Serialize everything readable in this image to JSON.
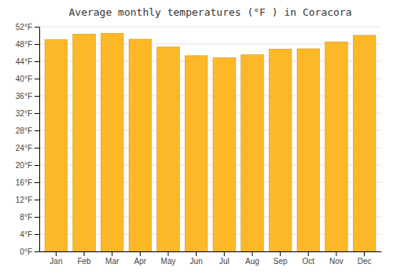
{
  "chart_data": {
    "type": "bar",
    "title": "Average monthly temperatures (°F ) in Coracora",
    "categories": [
      "Jan",
      "Feb",
      "Mar",
      "Apr",
      "May",
      "Jun",
      "Jul",
      "Aug",
      "Sep",
      "Oct",
      "Nov",
      "Dec"
    ],
    "values": [
      49.0,
      50.3,
      50.5,
      49.1,
      47.3,
      45.3,
      44.8,
      45.5,
      46.8,
      46.9,
      48.5,
      50.0
    ],
    "color": "#FDB827",
    "ylim": [
      0,
      52
    ],
    "yticks": [
      {
        "value": 0,
        "label": "0°F"
      },
      {
        "value": 4,
        "label": "4°F"
      },
      {
        "value": 8,
        "label": "8°F"
      },
      {
        "value": 12,
        "label": "12°F"
      },
      {
        "value": 16,
        "label": "16°F"
      },
      {
        "value": 20,
        "label": "20°F"
      },
      {
        "value": 24,
        "label": "24°F"
      },
      {
        "value": 28,
        "label": "28°F"
      },
      {
        "value": 32,
        "label": "32°F"
      },
      {
        "value": 36,
        "label": "36°F"
      },
      {
        "value": 40,
        "label": "40°F"
      },
      {
        "value": 44,
        "label": "44°F"
      },
      {
        "value": 48,
        "label": "48°F"
      },
      {
        "value": 52,
        "label": "52°F"
      }
    ],
    "grid": true
  }
}
